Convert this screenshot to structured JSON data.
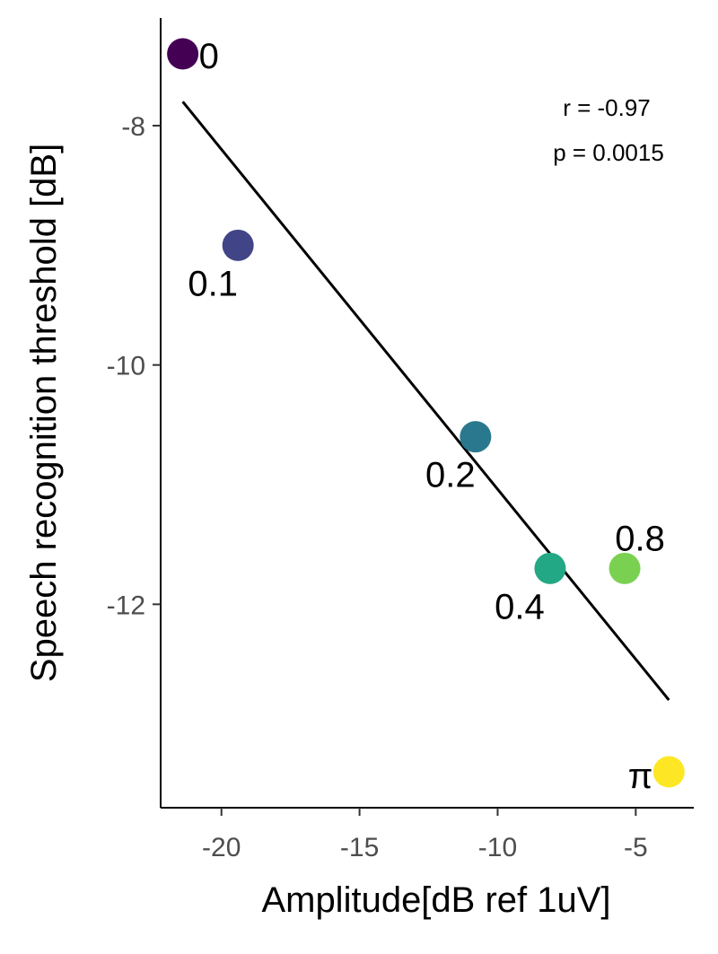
{
  "chart_data": {
    "type": "scatter",
    "xlabel": "Amplitude[dB ref 1uV]",
    "ylabel": "Speech recognition threshold [dB]",
    "xlim": [
      -22.2,
      -2.9
    ],
    "ylim": [
      -13.7,
      -7.1
    ],
    "xticks": [
      -20,
      -15,
      -10,
      -5
    ],
    "yticks": [
      -8,
      -10,
      -12
    ],
    "grid": false,
    "legend": "none",
    "points": [
      {
        "label": "0",
        "x": -21.4,
        "y": -7.4,
        "color": "#440154"
      },
      {
        "label": "0.1",
        "x": -19.4,
        "y": -9.0,
        "color": "#414487"
      },
      {
        "label": "0.2",
        "x": -10.8,
        "y": -10.6,
        "color": "#2a788e"
      },
      {
        "label": "0.4",
        "x": -8.1,
        "y": -11.7,
        "color": "#22a884"
      },
      {
        "label": "0.8",
        "x": -5.4,
        "y": -11.7,
        "color": "#7ad151"
      },
      {
        "label": "π",
        "x": -3.8,
        "y": -13.4,
        "color": "#fde725"
      }
    ],
    "fit_line": {
      "x1": -21.4,
      "y1": -7.8,
      "x2": -3.8,
      "y2": -12.8,
      "color": "#000000"
    },
    "annotations": {
      "r": "r = -0.97",
      "p": "p = 0.0015"
    }
  }
}
